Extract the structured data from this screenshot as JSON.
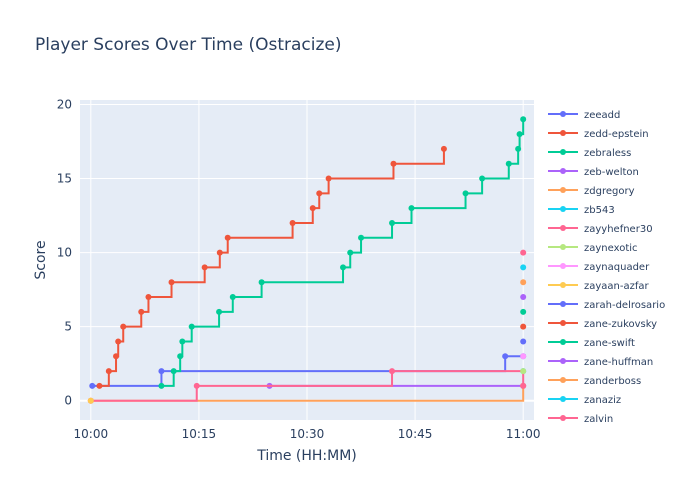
{
  "chart_data": {
    "type": "line",
    "line_shape": "step",
    "title": "Player Scores Over Time (Ostracize)",
    "xlabel": "Time (HH:MM)",
    "ylabel": "Score",
    "xlim_minutes": [
      -1.5,
      61.5
    ],
    "ylim": [
      -1.3,
      20.3
    ],
    "x_ticks": [
      {
        "value": 0,
        "label": "10:00"
      },
      {
        "value": 15,
        "label": "10:15"
      },
      {
        "value": 30,
        "label": "10:30"
      },
      {
        "value": 45,
        "label": "10:45"
      },
      {
        "value": 60,
        "label": "11:00"
      }
    ],
    "y_ticks": [
      0,
      5,
      10,
      15,
      20
    ],
    "grid": true,
    "legend_position": "right",
    "plot_background": "#e5ecf6",
    "series": [
      {
        "name": "zeeadd",
        "color": "#636efa",
        "points": [
          [
            0.2,
            1
          ],
          [
            9.8,
            2
          ],
          [
            57.5,
            3
          ],
          [
            60,
            3
          ]
        ]
      },
      {
        "name": "zedd-epstein",
        "color": "#ef553b",
        "points": [
          [
            1.2,
            1
          ],
          [
            2.5,
            2
          ],
          [
            3.5,
            3
          ],
          [
            3.8,
            4
          ],
          [
            4.5,
            5
          ],
          [
            7,
            6
          ],
          [
            8,
            7
          ],
          [
            11.2,
            8
          ],
          [
            15.8,
            9
          ],
          [
            17.9,
            10
          ],
          [
            19,
            11
          ],
          [
            28,
            12
          ],
          [
            30.8,
            13
          ],
          [
            31.7,
            14
          ],
          [
            33,
            15
          ],
          [
            42,
            16
          ],
          [
            49,
            17
          ]
        ]
      },
      {
        "name": "zebraless",
        "color": "#00cc96",
        "points": [
          [
            9.8,
            1
          ],
          [
            11.5,
            2
          ],
          [
            12.4,
            3
          ],
          [
            12.7,
            4
          ],
          [
            14,
            5
          ],
          [
            17.8,
            6
          ],
          [
            19.7,
            7
          ],
          [
            23.7,
            8
          ],
          [
            35,
            9
          ],
          [
            36,
            10
          ],
          [
            37.5,
            11
          ],
          [
            41.8,
            12
          ],
          [
            44.5,
            13
          ],
          [
            52,
            14
          ],
          [
            54.3,
            15
          ],
          [
            58,
            16
          ],
          [
            59.3,
            17
          ],
          [
            59.5,
            18
          ],
          [
            60,
            19
          ]
        ]
      },
      {
        "name": "zeb-welton",
        "color": "#ab63fa",
        "points": [
          [
            24.8,
            1
          ],
          [
            60,
            1
          ]
        ]
      },
      {
        "name": "zdgregory",
        "color": "#ffa15a",
        "points": [
          [
            0,
            0
          ],
          [
            60,
            1
          ]
        ]
      },
      {
        "name": "zb543",
        "color": "#19d3f3",
        "points": [
          [
            60,
            2
          ]
        ]
      },
      {
        "name": "zayyhefner30",
        "color": "#ff6692",
        "points": [
          [
            0,
            0
          ],
          [
            14.7,
            1
          ],
          [
            41.8,
            2
          ],
          [
            60,
            1
          ]
        ]
      },
      {
        "name": "zaynexotic",
        "color": "#b6e880",
        "points": [
          [
            60,
            2
          ]
        ]
      },
      {
        "name": "zaynaquader",
        "color": "#ff97ff",
        "points": [
          [
            60,
            3
          ]
        ]
      },
      {
        "name": "zayaan-azfar",
        "color": "#fecb52",
        "points": [
          [
            0,
            0
          ]
        ]
      },
      {
        "name": "zarah-delrosario",
        "color": "#636efa",
        "points": [
          [
            60,
            4
          ]
        ]
      },
      {
        "name": "zane-zukovsky",
        "color": "#ef553b",
        "points": [
          [
            60,
            5
          ]
        ]
      },
      {
        "name": "zane-swift",
        "color": "#00cc96",
        "points": [
          [
            60,
            6
          ]
        ]
      },
      {
        "name": "zane-huffman",
        "color": "#ab63fa",
        "points": [
          [
            60,
            7
          ]
        ]
      },
      {
        "name": "zanderboss",
        "color": "#ffa15a",
        "points": [
          [
            60,
            8
          ]
        ]
      },
      {
        "name": "zanaziz",
        "color": "#19d3f3",
        "points": [
          [
            60,
            9
          ]
        ]
      },
      {
        "name": "zalvin",
        "color": "#ff6692",
        "points": [
          [
            60,
            10
          ]
        ]
      }
    ]
  }
}
